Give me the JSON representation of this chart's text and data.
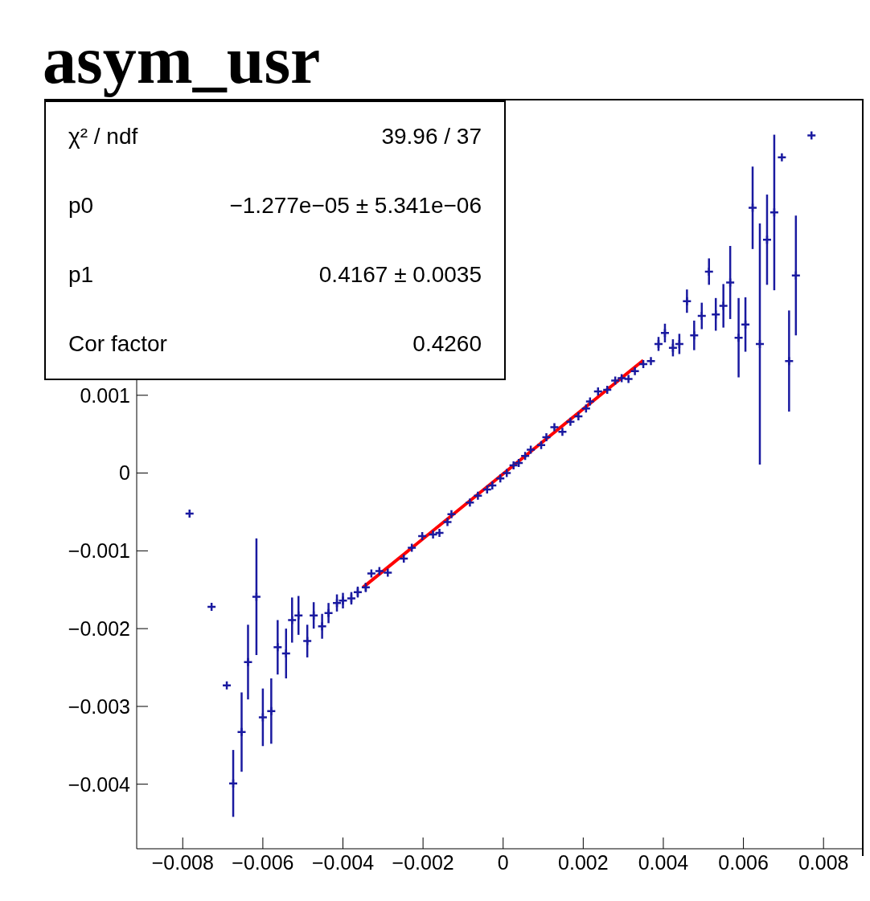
{
  "chart_data": {
    "type": "scatter",
    "title": "asym_usr",
    "annotations": [
      "χ² / ndf",
      "39.96 / 37",
      "p0",
      "−1.277e−05 ± 5.341e−06",
      "p1",
      "0.4167 ± 0.0035",
      "Cor factor",
      "0.4260"
    ],
    "xlim": [
      -0.00915,
      0.009
    ],
    "xticks": [
      -0.008,
      -0.006,
      -0.004,
      -0.002,
      0,
      0.002,
      0.004,
      0.006,
      0.008
    ],
    "ylim": [
      -0.00483,
      0.00479
    ],
    "yticks": [
      -0.004,
      -0.003,
      -0.002,
      -0.001,
      0,
      0.001
    ],
    "grid": false,
    "legend": false,
    "series": [
      {
        "color": "#1a1aa0",
        "marker": "cross",
        "x": [
          -0.00783,
          -0.00728,
          -0.0069,
          -0.00674,
          -0.00653,
          -0.00637,
          -0.00616,
          -0.006,
          -0.00579,
          -0.00563,
          -0.00542,
          -0.00527,
          -0.00511,
          -0.00489,
          -0.00473,
          -0.00452,
          -0.00436,
          -0.00415,
          -0.004,
          -0.00379,
          -0.00363,
          -0.00343,
          -0.00329,
          -0.00309,
          -0.00288,
          -0.00248,
          -0.00228,
          -0.00202,
          -0.00175,
          -0.00159,
          -0.00139,
          -0.00129,
          -0.00083,
          -0.00063,
          -0.0004,
          -0.00027,
          -7e-05,
          9e-05,
          0.00026,
          0.00039,
          0.00055,
          0.00069,
          0.00095,
          0.00108,
          0.00128,
          0.00148,
          0.00168,
          0.00188,
          0.00207,
          0.00217,
          0.00237,
          0.0026,
          0.0028,
          0.00296,
          0.00313,
          0.00329,
          0.0035,
          0.00369,
          0.00388,
          0.00404,
          0.00424,
          0.0044,
          0.00459,
          0.00477,
          0.00496,
          0.00514,
          0.00531,
          0.0055,
          0.00567,
          0.00588,
          0.00605,
          0.00623,
          0.00641,
          0.00659,
          0.00677,
          0.00696,
          0.00714,
          0.00731,
          0.0077
        ],
        "values": [
          -0.00052,
          -0.00172,
          -0.00273,
          -0.00399,
          -0.00333,
          -0.00243,
          -0.00159,
          -0.00314,
          -0.00306,
          -0.00224,
          -0.00232,
          -0.00189,
          -0.00183,
          -0.00216,
          -0.00183,
          -0.00197,
          -0.0018,
          -0.00167,
          -0.00164,
          -0.00161,
          -0.00153,
          -0.00147,
          -0.00129,
          -0.00126,
          -0.00128,
          -0.0011,
          -0.00096,
          -0.00081,
          -0.00079,
          -0.00077,
          -0.00063,
          -0.00053,
          -0.00038,
          -0.00029,
          -0.00021,
          -0.00016,
          -7e-05,
          0,
          0.0001,
          0.00013,
          0.00022,
          0.0003,
          0.00036,
          0.00046,
          0.00059,
          0.00053,
          0.00066,
          0.00073,
          0.00083,
          0.00092,
          0.00105,
          0.00107,
          0.00119,
          0.00122,
          0.00121,
          0.00131,
          0.0014,
          0.00144,
          0.00166,
          0.0018,
          0.00161,
          0.00166,
          0.00221,
          0.00177,
          0.00202,
          0.00259,
          0.00204,
          0.00215,
          0.00245,
          0.00174,
          0.00191,
          0.00341,
          0.00166,
          0.003,
          0.00335,
          0.00406,
          0.00144,
          0.00254,
          0.00434
        ],
        "errors": [
          null,
          null,
          null,
          0.00043,
          0.00051,
          0.00048,
          0.00075,
          0.00037,
          0.00042,
          0.00035,
          0.00032,
          0.00029,
          0.00025,
          0.00021,
          0.00017,
          0.00016,
          0.00013,
          0.00011,
          0.0001,
          8e-05,
          7e-05,
          6e-05,
          null,
          null,
          null,
          null,
          null,
          null,
          null,
          null,
          null,
          null,
          null,
          null,
          null,
          null,
          null,
          null,
          null,
          null,
          null,
          null,
          null,
          null,
          null,
          null,
          null,
          null,
          null,
          null,
          null,
          null,
          null,
          null,
          null,
          null,
          null,
          null,
          9e-05,
          0.00012,
          0.00011,
          0.00013,
          0.00015,
          0.00019,
          0.00017,
          0.00017,
          0.00021,
          0.00028,
          0.00047,
          0.00051,
          0.00035,
          0.00053,
          0.00155,
          0.00058,
          0.001,
          null,
          0.00065,
          0.00077,
          null
        ]
      },
      {
        "type": "line",
        "marker": "none",
        "color": "#ff0000",
        "x": [
          -0.0035,
          0.0035
        ],
        "values": [
          -0.00147,
          0.00145
        ]
      }
    ]
  }
}
